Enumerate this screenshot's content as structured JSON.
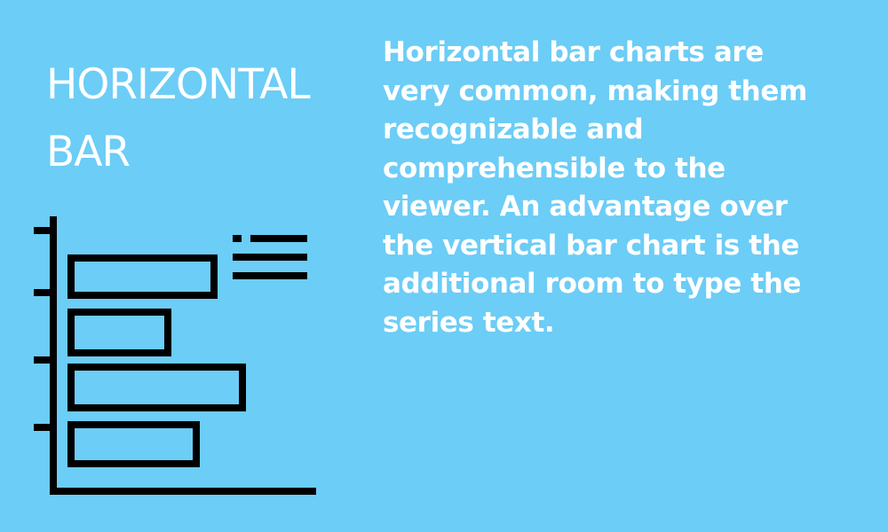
{
  "colors": {
    "background": "#6ccdf6",
    "foreground": "#000000",
    "text": "#ffffff"
  },
  "icon": "horizontal-bar-chart-icon",
  "title_lines": [
    "HORIZONTAL",
    "BAR"
  ],
  "description_lines": [
    "Horizontal bar charts are",
    "very common, making them",
    "recognizable and",
    "comprehensible to the",
    "viewer. An advantage over",
    "the vertical bar chart is the",
    "additional room to type the",
    "series text."
  ]
}
